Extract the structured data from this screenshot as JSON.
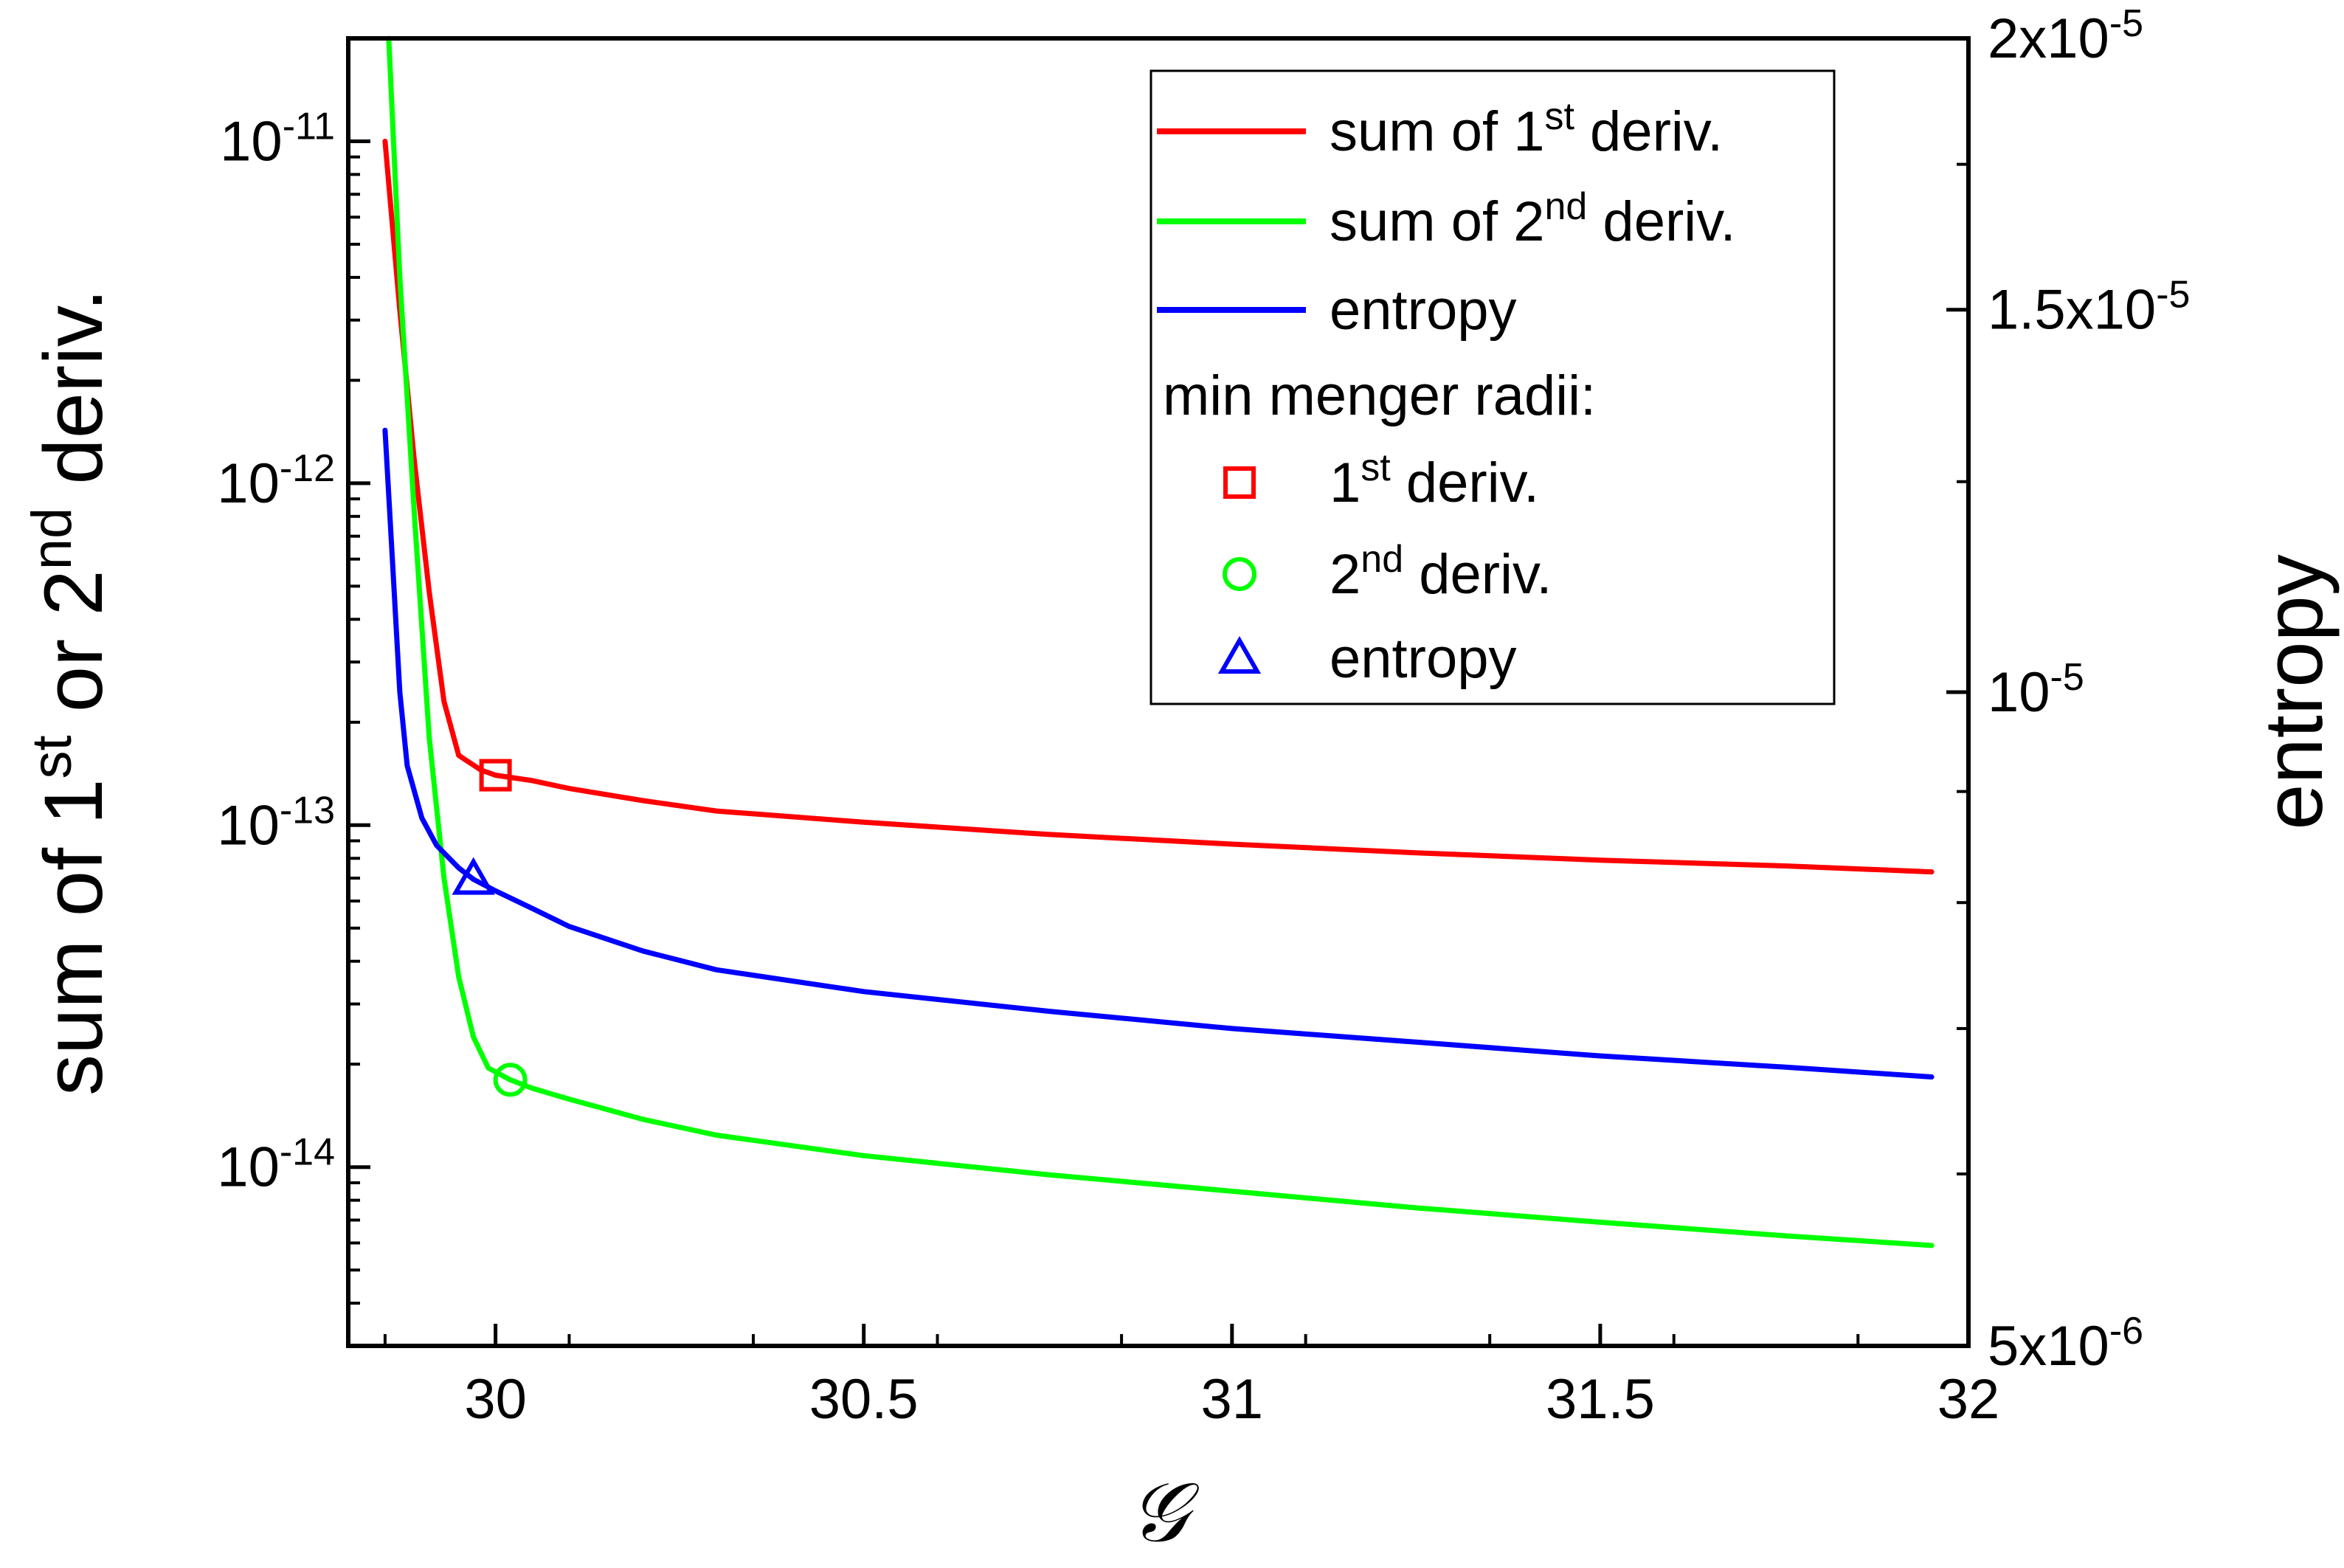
{
  "chart_data": {
    "type": "line",
    "xlabel": "𝒢",
    "ylabel_left": [
      "sum of 1",
      "st",
      " or 2",
      "nd",
      " deriv."
    ],
    "ylabel_right": "entropy",
    "xlim": [
      29.8,
      32
    ],
    "ylim_left": [
      3e-15,
      2e-11
    ],
    "yscale_left": "log",
    "ylim_right": [
      5e-06,
      2e-05
    ],
    "yscale_right": "log",
    "grid": false,
    "legend_position": "top-right",
    "x_ticks": [
      {
        "value": 30,
        "label": "30"
      },
      {
        "value": 30.5,
        "label": "30.5"
      },
      {
        "value": 31,
        "label": "31"
      },
      {
        "value": 31.5,
        "label": "31.5"
      },
      {
        "value": 32,
        "label": "32"
      }
    ],
    "y_left_ticks": [
      {
        "value": 1e-11,
        "base": "10",
        "exp": "-11"
      },
      {
        "value": 1e-12,
        "base": "10",
        "exp": "-12"
      },
      {
        "value": 1e-13,
        "base": "10",
        "exp": "-13"
      },
      {
        "value": 1e-14,
        "base": "10",
        "exp": "-14"
      }
    ],
    "y_right_ticks": [
      {
        "value": 2e-05,
        "base": "2x10",
        "exp": "-5"
      },
      {
        "value": 1.5e-05,
        "base": "1.5x10",
        "exp": "-5"
      },
      {
        "value": 1e-05,
        "base": "10",
        "exp": "-5"
      },
      {
        "value": 5e-06,
        "base": "5x10",
        "exp": "-6"
      }
    ],
    "series": [
      {
        "name": "sum of 1st deriv.",
        "axis": "left",
        "color": "#ff0000",
        "x": [
          29.85,
          29.87,
          29.89,
          29.91,
          29.93,
          29.95,
          29.98,
          30.0,
          30.05,
          30.1,
          30.2,
          30.3,
          30.5,
          30.75,
          31.0,
          31.25,
          31.5,
          31.75,
          31.95
        ],
        "y": [
          1e-11,
          3.2e-12,
          1.15e-12,
          4.8e-13,
          2.3e-13,
          1.6e-13,
          1.45e-13,
          1.4e-13,
          1.35e-13,
          1.28e-13,
          1.18e-13,
          1.1e-13,
          1.02e-13,
          9.4e-14,
          8.8e-14,
          8.3e-14,
          7.9e-14,
          7.6e-14,
          7.3e-14
        ]
      },
      {
        "name": "sum of 2nd deriv.",
        "axis": "left",
        "color": "#00ff00",
        "x": [
          29.855,
          29.87,
          29.89,
          29.91,
          29.93,
          29.95,
          29.97,
          29.99,
          30.02,
          30.05,
          30.1,
          30.2,
          30.3,
          30.5,
          30.75,
          31.0,
          31.25,
          31.5,
          31.75,
          31.95
        ],
        "y": [
          2e-11,
          4e-12,
          8e-13,
          1.8e-13,
          7e-14,
          3.6e-14,
          2.4e-14,
          1.95e-14,
          1.8e-14,
          1.7e-14,
          1.58e-14,
          1.38e-14,
          1.24e-14,
          1.08e-14,
          9.5e-15,
          8.5e-15,
          7.6e-15,
          6.9e-15,
          6.3e-15,
          5.9e-15
        ]
      },
      {
        "name": "entropy",
        "axis": "right",
        "color": "#0000ff",
        "x": [
          29.85,
          29.86,
          29.87,
          29.88,
          29.9,
          29.92,
          29.95,
          29.97,
          30.0,
          30.05,
          30.1,
          30.2,
          30.3,
          30.5,
          30.75,
          31.0,
          31.25,
          31.5,
          31.75,
          31.95
        ],
        "y": [
          1.32e-05,
          1.15e-05,
          1e-05,
          9.25e-06,
          8.75e-06,
          8.5e-06,
          8.3e-06,
          8.2e-06,
          8.1e-06,
          7.95e-06,
          7.8e-06,
          7.6e-06,
          7.45e-06,
          7.28e-06,
          7.13e-06,
          7e-06,
          6.9e-06,
          6.8e-06,
          6.72e-06,
          6.65e-06
        ]
      }
    ],
    "markers": [
      {
        "name": "1st deriv.",
        "shape": "square",
        "axis": "left",
        "color": "#ff0000",
        "x": 30.0,
        "y": 1.4e-13
      },
      {
        "name": "2nd deriv.",
        "shape": "circle",
        "axis": "left",
        "color": "#00ff00",
        "x": 30.02,
        "y": 1.8e-14
      },
      {
        "name": "entropy",
        "shape": "triangle",
        "axis": "right",
        "color": "#0000ff",
        "x": 29.97,
        "y": 8.2e-06
      }
    ],
    "legend": {
      "lines": [
        {
          "parts": [
            "sum of 1",
            "st",
            " deriv."
          ],
          "color": "#ff0000"
        },
        {
          "parts": [
            "sum of 2",
            "nd",
            " deriv."
          ],
          "color": "#00ff00"
        },
        {
          "parts": [
            "entropy"
          ],
          "color": "#0000ff"
        }
      ],
      "markers_title": "min menger radii:",
      "markers": [
        {
          "parts": [
            "1",
            "st",
            " deriv."
          ],
          "shape": "square",
          "color": "#ff0000"
        },
        {
          "parts": [
            "2",
            "nd",
            " deriv."
          ],
          "shape": "circle",
          "color": "#00ff00"
        },
        {
          "parts": [
            "entropy"
          ],
          "shape": "triangle",
          "color": "#0000ff"
        }
      ]
    }
  }
}
